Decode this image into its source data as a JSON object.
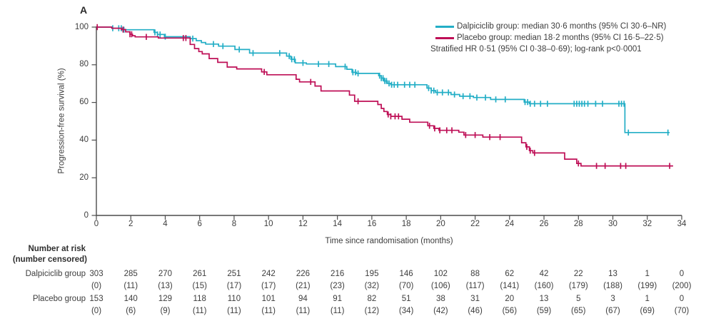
{
  "panel_label": "A",
  "colors": {
    "axis": "#4c4c4c",
    "text": "#3d3d3d",
    "dalpiciclib": "#23AEC6",
    "placebo": "#BE0F56"
  },
  "axes": {
    "y_title": "Progression-free survival (%)",
    "x_title": "Time since randomisation (months)"
  },
  "legend": {
    "entries": [
      {
        "label": "Dalpiciclib group: median 30·6 months (95% CI 30·6–NR)",
        "color": "#23AEC6"
      },
      {
        "label": "Placebo group: median 18·2 months (95% CI 16·5–22·5)",
        "color": "#BE0F56"
      }
    ],
    "note": "Stratified HR 0·51 (95% CI 0·38–0·69); log-rank p<0·0001"
  },
  "chart_data": {
    "type": "line",
    "subtype": "kaplan-meier-step",
    "title": "",
    "xlabel": "Time since randomisation (months)",
    "ylabel": "Progression-free survival (%)",
    "xlim": [
      0,
      34
    ],
    "ylim": [
      0,
      100
    ],
    "xticks": [
      0,
      2,
      4,
      6,
      8,
      10,
      12,
      14,
      16,
      18,
      20,
      22,
      24,
      26,
      28,
      30,
      32,
      34
    ],
    "yticks": [
      0,
      20,
      40,
      60,
      80,
      100
    ],
    "grid": false,
    "legend_position": "top-right",
    "annotation": "Stratified HR 0·51 (95% CI 0·38–0·69); log-rank p<0·0001",
    "series": [
      {
        "name": "Dalpiciclib group",
        "color": "#23AEC6",
        "median_months": "30·6",
        "median_ci": "30·6–NR",
        "end_time": 33.3,
        "steps": [
          [
            0,
            100
          ],
          [
            0.9,
            99.4
          ],
          [
            1.5,
            98.6
          ],
          [
            3.35,
            97.2
          ],
          [
            3.55,
            96.1
          ],
          [
            3.95,
            94.9
          ],
          [
            5.45,
            93.9
          ],
          [
            5.8,
            92.8
          ],
          [
            6.1,
            91.8
          ],
          [
            6.35,
            91.0
          ],
          [
            7.1,
            89.9
          ],
          [
            8.05,
            88.1
          ],
          [
            8.9,
            86.2
          ],
          [
            11.05,
            84.6
          ],
          [
            11.3,
            82.9
          ],
          [
            11.55,
            81.0
          ],
          [
            12.2,
            80.4
          ],
          [
            13.9,
            79.0
          ],
          [
            14.55,
            77.6
          ],
          [
            14.85,
            76.0
          ],
          [
            15.1,
            75.4
          ],
          [
            16.4,
            74.2
          ],
          [
            16.55,
            72.9
          ],
          [
            16.7,
            71.4
          ],
          [
            16.9,
            70.1
          ],
          [
            17.1,
            69.4
          ],
          [
            19.2,
            67.6
          ],
          [
            19.45,
            66.3
          ],
          [
            19.7,
            65.3
          ],
          [
            20.6,
            64.2
          ],
          [
            21.1,
            63.3
          ],
          [
            21.9,
            62.6
          ],
          [
            22.9,
            61.6
          ],
          [
            24.85,
            60.2
          ],
          [
            25.15,
            59.3
          ],
          [
            30.7,
            44.0
          ]
        ],
        "censor_times": [
          0.95,
          1.3,
          1.45,
          1.6,
          3.4,
          3.55,
          3.7,
          4.0,
          5.6,
          6.8,
          7.35,
          8.3,
          9.1,
          10.65,
          11.2,
          11.35,
          11.5,
          12.0,
          12.9,
          13.5,
          14.45,
          14.9,
          15.05,
          15.2,
          16.45,
          16.55,
          16.65,
          16.75,
          16.85,
          17.0,
          17.15,
          17.3,
          17.5,
          17.9,
          18.2,
          18.5,
          19.3,
          19.45,
          19.6,
          19.8,
          20.1,
          20.45,
          20.8,
          21.3,
          21.7,
          22.1,
          22.6,
          23.2,
          23.75,
          24.9,
          25.05,
          25.2,
          25.45,
          25.8,
          26.2,
          27.75,
          27.9,
          28.05,
          28.2,
          28.35,
          28.55,
          29.0,
          29.4,
          30.35,
          30.5,
          30.65,
          30.9,
          33.2
        ]
      },
      {
        "name": "Placebo group",
        "color": "#BE0F56",
        "median_months": "18·2",
        "median_ci": "16·5–22·5",
        "end_time": 33.5,
        "steps": [
          [
            0,
            100
          ],
          [
            0.9,
            99.4
          ],
          [
            1.45,
            98.7
          ],
          [
            1.7,
            97.5
          ],
          [
            1.95,
            96.2
          ],
          [
            2.1,
            95.4
          ],
          [
            2.25,
            94.8
          ],
          [
            3.6,
            94.2
          ],
          [
            5.45,
            90.8
          ],
          [
            5.7,
            88.6
          ],
          [
            5.95,
            87.0
          ],
          [
            6.15,
            85.8
          ],
          [
            6.55,
            83.3
          ],
          [
            7.05,
            81.3
          ],
          [
            7.6,
            78.8
          ],
          [
            8.15,
            77.8
          ],
          [
            9.6,
            76.2
          ],
          [
            9.9,
            74.7
          ],
          [
            11.6,
            72.3
          ],
          [
            11.8,
            70.9
          ],
          [
            12.7,
            68.7
          ],
          [
            13.05,
            66.1
          ],
          [
            14.7,
            63.9
          ],
          [
            15.0,
            60.6
          ],
          [
            16.35,
            58.9
          ],
          [
            16.55,
            56.8
          ],
          [
            16.7,
            55.2
          ],
          [
            16.9,
            53.6
          ],
          [
            17.1,
            52.6
          ],
          [
            17.75,
            51.1
          ],
          [
            18.2,
            49.5
          ],
          [
            19.25,
            47.6
          ],
          [
            19.6,
            46.2
          ],
          [
            19.9,
            45.2
          ],
          [
            21.05,
            44.2
          ],
          [
            21.35,
            42.7
          ],
          [
            22.45,
            41.6
          ],
          [
            24.7,
            38.6
          ],
          [
            24.95,
            36.4
          ],
          [
            25.15,
            34.4
          ],
          [
            25.35,
            33.2
          ],
          [
            27.2,
            29.9
          ],
          [
            27.9,
            27.6
          ],
          [
            28.15,
            26.3
          ]
        ],
        "censor_times": [
          0.05,
          1.55,
          1.95,
          2.05,
          2.9,
          5.05,
          5.2,
          9.75,
          12.45,
          15.2,
          16.95,
          17.1,
          17.35,
          17.55,
          19.35,
          19.65,
          19.95,
          20.35,
          20.65,
          21.45,
          22.0,
          22.85,
          23.45,
          25.0,
          25.2,
          25.45,
          28.0,
          29.05,
          29.55,
          30.45,
          30.75,
          33.3
        ]
      }
    ]
  },
  "risk_table": {
    "title": "Number at risk",
    "subtitle": "(number censored)",
    "times": [
      0,
      2,
      4,
      6,
      8,
      10,
      12,
      14,
      16,
      18,
      20,
      22,
      24,
      26,
      28,
      30,
      32,
      34
    ],
    "rows": [
      {
        "label": "Dalpiciclib group",
        "at_risk": [
          303,
          285,
          270,
          261,
          251,
          242,
          226,
          216,
          195,
          146,
          102,
          88,
          62,
          42,
          22,
          13,
          1,
          0
        ],
        "censored": [
          "(0)",
          "(11)",
          "(13)",
          "(15)",
          "(17)",
          "(17)",
          "(21)",
          "(23)",
          "(32)",
          "(70)",
          "(106)",
          "(117)",
          "(141)",
          "(160)",
          "(179)",
          "(188)",
          "(199)",
          "(200)"
        ]
      },
      {
        "label": "Placebo group",
        "at_risk": [
          153,
          140,
          129,
          118,
          110,
          101,
          94,
          91,
          82,
          51,
          38,
          31,
          20,
          13,
          5,
          3,
          1,
          0
        ],
        "censored": [
          "(0)",
          "(6)",
          "(9)",
          "(11)",
          "(11)",
          "(11)",
          "(11)",
          "(11)",
          "(12)",
          "(34)",
          "(42)",
          "(46)",
          "(56)",
          "(59)",
          "(65)",
          "(67)",
          "(69)",
          "(70)"
        ]
      }
    ]
  }
}
